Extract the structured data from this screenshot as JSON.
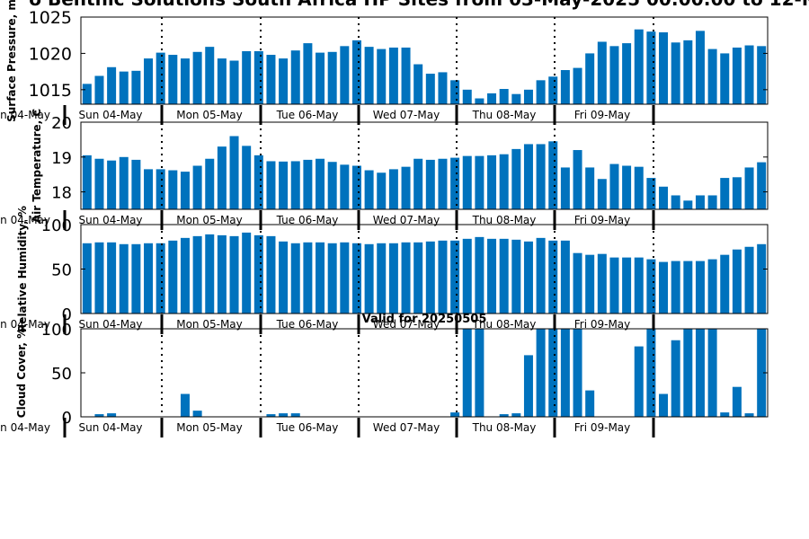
{
  "figure": {
    "title": "o Benthic Solutions South Africa HP Sites from 03-May-2025 00:00:00 to 12-M",
    "valid_label": "Valid for 20250505",
    "bar_color": "#0072bd"
  },
  "chart_data": [
    {
      "type": "bar",
      "name": "pressure",
      "ylabel": "Surface Pressure, m",
      "ylim": [
        1013,
        1025
      ],
      "yticks": [
        1015,
        1020,
        1025
      ],
      "values": [
        1015.8,
        1016.9,
        1018.1,
        1017.5,
        1017.6,
        1019.3,
        1020.1,
        1019.8,
        1019.3,
        1020.2,
        1020.9,
        1019.3,
        1019.0,
        1020.3,
        1020.3,
        1019.8,
        1019.3,
        1020.4,
        1021.4,
        1020.1,
        1020.2,
        1021.0,
        1021.8,
        1020.9,
        1020.6,
        1020.8,
        1020.8,
        1018.5,
        1017.2,
        1017.4,
        1016.3,
        1015.0,
        1013.8,
        1014.5,
        1015.1,
        1014.4,
        1015.0,
        1016.3,
        1016.8,
        1017.7,
        1018.0,
        1020.0,
        1021.6,
        1021.0,
        1021.4,
        1023.3,
        1023.0,
        1022.9,
        1021.5,
        1021.8,
        1023.1,
        1020.6,
        1020.0,
        1020.8,
        1021.1,
        1021.0
      ]
    },
    {
      "type": "bar",
      "name": "temperature",
      "ylabel": "Air Temperature, C",
      "ylim": [
        17.5,
        20
      ],
      "yticks": [
        18,
        19,
        20
      ],
      "values": [
        19.05,
        18.95,
        18.9,
        19.0,
        18.92,
        18.65,
        18.65,
        18.62,
        18.58,
        18.75,
        18.95,
        19.3,
        19.6,
        19.32,
        19.05,
        18.88,
        18.87,
        18.88,
        18.92,
        18.95,
        18.86,
        18.78,
        18.75,
        18.62,
        18.55,
        18.65,
        18.72,
        18.95,
        18.92,
        18.95,
        18.98,
        19.03,
        19.03,
        19.05,
        19.08,
        19.23,
        19.37,
        19.37,
        19.45,
        18.7,
        19.2,
        18.7,
        18.37,
        18.8,
        18.75,
        18.72,
        18.4,
        18.15,
        17.9,
        17.75,
        17.9,
        17.9,
        18.4,
        18.42,
        18.7,
        18.85
      ]
    },
    {
      "type": "bar",
      "name": "humidity",
      "ylabel": "Relative Humidity, %",
      "ylim": [
        0,
        100
      ],
      "yticks": [
        0,
        50,
        100
      ],
      "values": [
        79,
        80,
        80,
        78,
        78,
        79,
        79,
        82,
        85,
        87,
        89,
        88,
        87,
        91,
        88,
        87,
        81,
        79,
        80,
        80,
        79,
        80,
        79,
        78,
        79,
        79,
        80,
        80,
        81,
        82,
        82,
        84,
        86,
        84,
        84,
        83,
        81,
        85,
        82,
        82,
        68,
        66,
        67,
        63,
        63,
        63,
        61,
        58,
        59,
        59,
        59,
        61,
        66,
        72,
        75,
        78
      ]
    },
    {
      "type": "bar",
      "name": "cloud",
      "ylabel": "Cloud Cover, %",
      "ylim": [
        0,
        100
      ],
      "yticks": [
        0,
        50,
        100
      ],
      "values": [
        0,
        3,
        4,
        0,
        0,
        0,
        0,
        0,
        26,
        7,
        0,
        0,
        0,
        0,
        0,
        3,
        4,
        4,
        0,
        0,
        0,
        0,
        0,
        0,
        0,
        0,
        0,
        0,
        0,
        0,
        5,
        100,
        100,
        0,
        3,
        4,
        70,
        100,
        100,
        100,
        100,
        30,
        0,
        0,
        0,
        80,
        100,
        26,
        87,
        100,
        100,
        100,
        5,
        34,
        4,
        100
      ]
    }
  ],
  "days": {
    "first": "n 04-May",
    "labels": [
      "Sun 04-May",
      "Mon 05-May",
      "Tue 06-May",
      "Wed 07-May",
      "Thu 08-May",
      "Fri 09-May"
    ]
  }
}
